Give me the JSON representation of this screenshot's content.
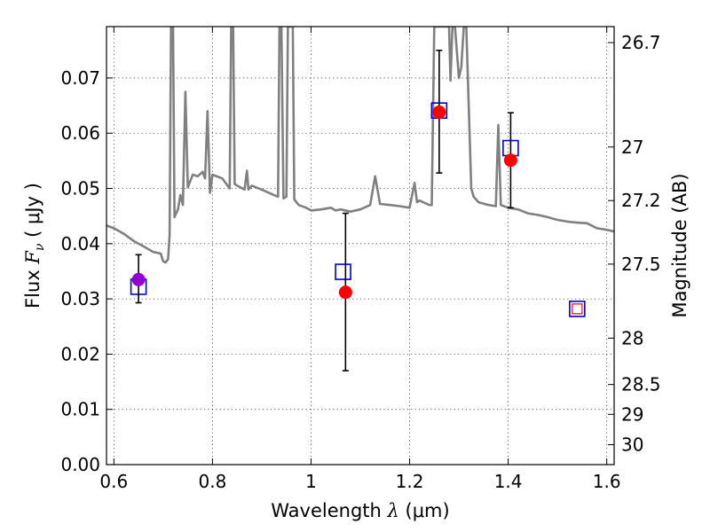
{
  "chart_data": {
    "type": "scatter",
    "xlim": [
      0.585,
      1.615
    ],
    "ylim": [
      0.0,
      0.0793
    ],
    "x_ticks": [
      0.6,
      0.8,
      1.0,
      1.2,
      1.4,
      1.6
    ],
    "x_tick_labels": [
      "0.6",
      "0.8",
      "1",
      "1.2",
      "1.4",
      "1.6"
    ],
    "y_ticks": [
      0.0,
      0.01,
      0.02,
      0.03,
      0.04,
      0.05,
      0.06,
      0.07
    ],
    "y_tick_labels": [
      "0.00",
      "0.01",
      "0.02",
      "0.03",
      "0.04",
      "0.05",
      "0.06",
      "0.07"
    ],
    "right_ticks": [
      {
        "label": "26.7",
        "flux": 0.0764
      },
      {
        "label": "27",
        "flux": 0.0575
      },
      {
        "label": "27.2",
        "flux": 0.0478
      },
      {
        "label": "27.5",
        "flux": 0.0363
      },
      {
        "label": "28",
        "flux": 0.0229
      },
      {
        "label": "28.5",
        "flux": 0.0145
      },
      {
        "label": "29",
        "flux": 0.0091
      },
      {
        "label": "30",
        "flux": 0.0036
      }
    ],
    "xlabel_prefix": "Wavelength  ",
    "xlabel_symbol": "λ",
    "xlabel_suffix": " (μm)",
    "ylabel_prefix": "Flux  ",
    "ylabel_symbol": "F",
    "ylabel_subscript": "ν",
    "ylabel_suffix": "  ( μJy )",
    "y2label": "Magnitude (AB)",
    "grid": true,
    "colors": {
      "model": "#808080",
      "observed": "#ff0000",
      "observed_first": "#9400d3",
      "model_band": "#0000cc",
      "errorbar": "#000000",
      "upper_limit_inner": "#ff0000"
    },
    "series": [
      {
        "role": "model-spectrum",
        "points": [
          [
            0.585,
            0.0433
          ],
          [
            0.6,
            0.0428
          ],
          [
            0.62,
            0.0418
          ],
          [
            0.64,
            0.0405
          ],
          [
            0.66,
            0.0395
          ],
          [
            0.68,
            0.0385
          ],
          [
            0.695,
            0.0382
          ],
          [
            0.7,
            0.0368
          ],
          [
            0.705,
            0.0366
          ],
          [
            0.71,
            0.0372
          ],
          [
            0.713,
            0.0415
          ],
          [
            0.716,
            0.0793
          ],
          [
            0.72,
            0.0793
          ],
          [
            0.723,
            0.0448
          ],
          [
            0.73,
            0.0462
          ],
          [
            0.735,
            0.0488
          ],
          [
            0.74,
            0.047
          ],
          [
            0.745,
            0.0675
          ],
          [
            0.75,
            0.0502
          ],
          [
            0.76,
            0.0525
          ],
          [
            0.77,
            0.0522
          ],
          [
            0.78,
            0.053
          ],
          [
            0.785,
            0.0518
          ],
          [
            0.79,
            0.064
          ],
          [
            0.795,
            0.0492
          ],
          [
            0.8,
            0.0525
          ],
          [
            0.82,
            0.0518
          ],
          [
            0.835,
            0.05
          ],
          [
            0.838,
            0.0793
          ],
          [
            0.842,
            0.0793
          ],
          [
            0.845,
            0.0508
          ],
          [
            0.85,
            0.0505
          ],
          [
            0.865,
            0.0498
          ],
          [
            0.87,
            0.0532
          ],
          [
            0.873,
            0.0498
          ],
          [
            0.88,
            0.0505
          ],
          [
            0.9,
            0.0498
          ],
          [
            0.92,
            0.049
          ],
          [
            0.933,
            0.0485
          ],
          [
            0.936,
            0.0793
          ],
          [
            0.94,
            0.0793
          ],
          [
            0.944,
            0.0482
          ],
          [
            0.95,
            0.0485
          ],
          [
            0.953,
            0.0793
          ],
          [
            0.956,
            0.0793
          ],
          [
            0.96,
            0.0793
          ],
          [
            0.963,
            0.0793
          ],
          [
            0.966,
            0.048
          ],
          [
            0.975,
            0.047
          ],
          [
            0.99,
            0.0465
          ],
          [
            1.0,
            0.046
          ],
          [
            1.02,
            0.0462
          ],
          [
            1.04,
            0.0465
          ],
          [
            1.05,
            0.046
          ],
          [
            1.06,
            0.0462
          ],
          [
            1.08,
            0.0458
          ],
          [
            1.1,
            0.0462
          ],
          [
            1.12,
            0.047
          ],
          [
            1.13,
            0.0522
          ],
          [
            1.14,
            0.0472
          ],
          [
            1.16,
            0.047
          ],
          [
            1.18,
            0.0468
          ],
          [
            1.2,
            0.0465
          ],
          [
            1.21,
            0.051
          ],
          [
            1.215,
            0.0475
          ],
          [
            1.22,
            0.0478
          ],
          [
            1.24,
            0.047
          ],
          [
            1.245,
            0.047
          ],
          [
            1.25,
            0.0793
          ],
          [
            1.27,
            0.0793
          ],
          [
            1.28,
            0.0793
          ],
          [
            1.283,
            0.0695
          ],
          [
            1.287,
            0.0793
          ],
          [
            1.292,
            0.0793
          ],
          [
            1.3,
            0.07
          ],
          [
            1.305,
            0.072
          ],
          [
            1.31,
            0.0793
          ],
          [
            1.315,
            0.0793
          ],
          [
            1.325,
            0.05
          ],
          [
            1.33,
            0.0485
          ],
          [
            1.34,
            0.0475
          ],
          [
            1.36,
            0.047
          ],
          [
            1.375,
            0.0468
          ],
          [
            1.38,
            0.0615
          ],
          [
            1.385,
            0.047
          ],
          [
            1.4,
            0.0465
          ],
          [
            1.42,
            0.0462
          ],
          [
            1.44,
            0.0455
          ],
          [
            1.46,
            0.0452
          ],
          [
            1.48,
            0.0448
          ],
          [
            1.5,
            0.0443
          ],
          [
            1.52,
            0.044
          ],
          [
            1.54,
            0.0438
          ],
          [
            1.56,
            0.0437
          ],
          [
            1.58,
            0.0428
          ],
          [
            1.6,
            0.0425
          ],
          [
            1.615,
            0.0422
          ]
        ]
      },
      {
        "role": "model-band-flux",
        "points": [
          [
            0.65,
            0.0322
          ],
          [
            1.065,
            0.0349
          ],
          [
            1.26,
            0.0641
          ],
          [
            1.405,
            0.0573
          ],
          [
            1.54,
            0.0282
          ]
        ]
      },
      {
        "role": "observed-flux",
        "points": [
          {
            "x": 0.65,
            "y": 0.0335,
            "yerr_low": 0.0293,
            "yerr_high": 0.038
          },
          {
            "x": 1.07,
            "y": 0.0312,
            "yerr_low": 0.017,
            "yerr_high": 0.0455
          },
          {
            "x": 1.26,
            "y": 0.0638,
            "yerr_low": 0.0528,
            "yerr_high": 0.075
          },
          {
            "x": 1.405,
            "y": 0.0551,
            "yerr_low": 0.0465,
            "yerr_high": 0.0637
          }
        ]
      },
      {
        "role": "upper-limit",
        "points": [
          [
            1.54,
            0.0282
          ]
        ]
      }
    ]
  }
}
